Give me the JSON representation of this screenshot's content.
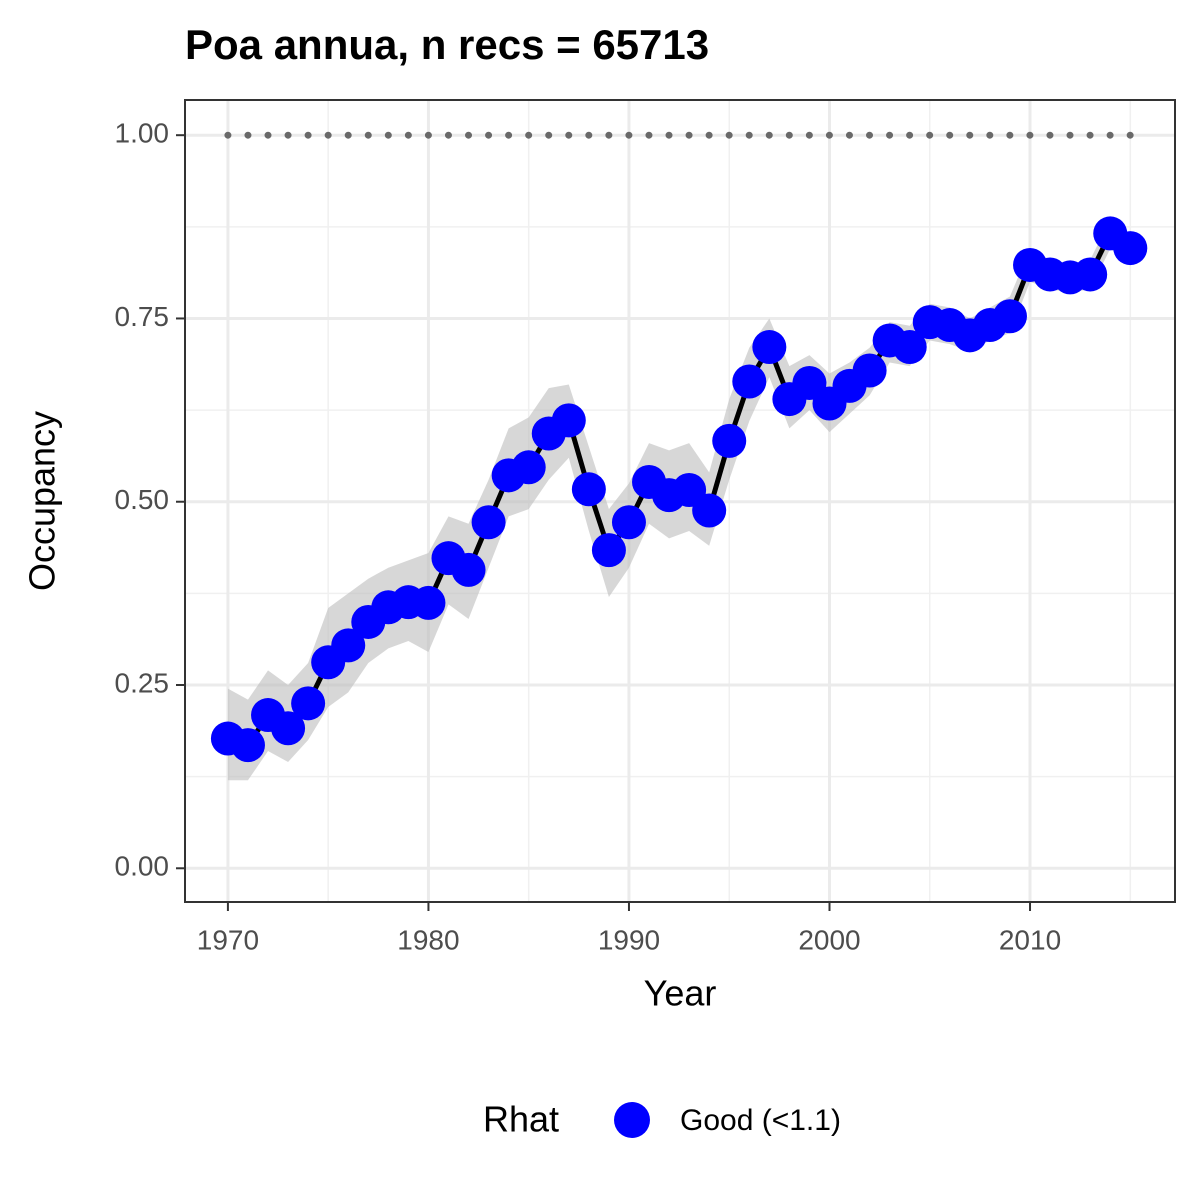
{
  "chart_data": {
    "type": "line",
    "title": "Poa annua, n recs = 65713",
    "xlabel": "Year",
    "ylabel": "Occupancy",
    "legend_title": "Rhat",
    "legend_position": "bottom",
    "x": [
      1970,
      1971,
      1972,
      1973,
      1974,
      1975,
      1976,
      1977,
      1978,
      1979,
      1980,
      1981,
      1982,
      1983,
      1984,
      1985,
      1986,
      1987,
      1988,
      1989,
      1990,
      1991,
      1992,
      1993,
      1994,
      1995,
      1996,
      1997,
      1998,
      1999,
      2000,
      2001,
      2002,
      2003,
      2004,
      2005,
      2006,
      2007,
      2008,
      2009,
      2010,
      2011,
      2012,
      2013,
      2014,
      2015
    ],
    "series": [
      {
        "name": "Good (<1.1)",
        "color": "#0000ff",
        "line_color": "#000000",
        "band_color": "#bdbdbd",
        "values": [
          0.177,
          0.168,
          0.209,
          0.191,
          0.225,
          0.281,
          0.304,
          0.336,
          0.356,
          0.363,
          0.362,
          0.423,
          0.407,
          0.472,
          0.536,
          0.547,
          0.593,
          0.611,
          0.517,
          0.434,
          0.472,
          0.527,
          0.509,
          0.516,
          0.488,
          0.583,
          0.664,
          0.711,
          0.64,
          0.662,
          0.634,
          0.658,
          0.679,
          0.72,
          0.711,
          0.745,
          0.741,
          0.727,
          0.741,
          0.753,
          0.823,
          0.81,
          0.806,
          0.81,
          0.866,
          0.846
        ],
        "lower": [
          0.12,
          0.12,
          0.16,
          0.145,
          0.175,
          0.22,
          0.24,
          0.28,
          0.3,
          0.31,
          0.295,
          0.36,
          0.34,
          0.41,
          0.48,
          0.49,
          0.53,
          0.56,
          0.46,
          0.37,
          0.41,
          0.47,
          0.45,
          0.46,
          0.44,
          0.53,
          0.61,
          0.67,
          0.6,
          0.625,
          0.595,
          0.62,
          0.645,
          0.69,
          0.685,
          0.72,
          0.715,
          0.705,
          0.72,
          0.73,
          0.8,
          0.79,
          0.785,
          0.79,
          0.845,
          0.825
        ],
        "upper": [
          0.245,
          0.23,
          0.27,
          0.25,
          0.28,
          0.355,
          0.375,
          0.395,
          0.41,
          0.42,
          0.43,
          0.48,
          0.47,
          0.53,
          0.6,
          0.615,
          0.655,
          0.66,
          0.575,
          0.49,
          0.525,
          0.58,
          0.57,
          0.58,
          0.54,
          0.64,
          0.71,
          0.75,
          0.685,
          0.7,
          0.675,
          0.69,
          0.71,
          0.745,
          0.74,
          0.77,
          0.765,
          0.75,
          0.765,
          0.78,
          0.845,
          0.83,
          0.825,
          0.83,
          0.885,
          0.865
        ]
      }
    ],
    "reference_line": {
      "value": 1,
      "xrange": [
        1970,
        2015
      ],
      "color": "#696969"
    },
    "xlim": [
      1967.86,
      2017.23
    ],
    "ylim": [
      -0.046,
      1.048
    ],
    "xticks": [
      1970,
      1980,
      1990,
      2000,
      2010
    ],
    "minor_xticks": [
      1975,
      1985,
      1995,
      2005,
      2015
    ],
    "yticks": [
      {
        "value": 0,
        "label": "0.00"
      },
      {
        "value": 0.25,
        "label": "0.25"
      },
      {
        "value": 0.5,
        "label": "0.50"
      },
      {
        "value": 0.75,
        "label": "0.75"
      },
      {
        "value": 1,
        "label": "1.00"
      }
    ],
    "minor_yticks": [
      0.125,
      0.375,
      0.625,
      0.875
    ],
    "grid": true
  }
}
